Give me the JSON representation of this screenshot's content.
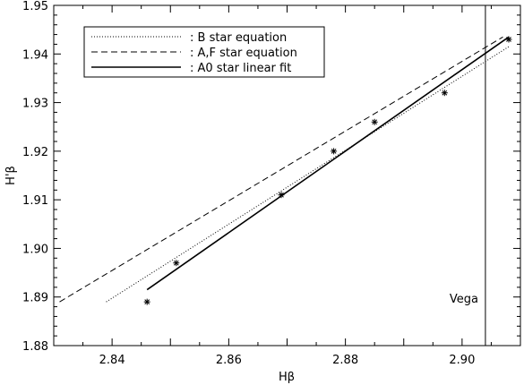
{
  "chart_data": {
    "type": "line",
    "xlabel": "Hβ",
    "ylabel": "H'β",
    "xlim": [
      2.83,
      2.91
    ],
    "ylim": [
      1.88,
      1.95
    ],
    "xticks": [
      "2.84",
      "2.86",
      "2.88",
      "2.90"
    ],
    "xtick_values": [
      2.84,
      2.86,
      2.88,
      2.9
    ],
    "yticks": [
      "1.88",
      "1.89",
      "1.90",
      "1.91",
      "1.92",
      "1.93",
      "1.94",
      "1.95"
    ],
    "ytick_values": [
      1.88,
      1.89,
      1.9,
      1.91,
      1.92,
      1.93,
      1.94,
      1.95
    ],
    "grid": false,
    "legend_position": "top-left",
    "series": [
      {
        "name": ": B star equation",
        "style": "dotted",
        "x": [
          2.839,
          2.908
        ],
        "y": [
          1.889,
          1.9415
        ]
      },
      {
        "name": ": A,F star equation",
        "style": "dashed",
        "x": [
          2.831,
          2.907
        ],
        "y": [
          1.889,
          1.9435
        ]
      },
      {
        "name": ": A0 star linear fit",
        "style": "solid",
        "x": [
          2.846,
          2.908
        ],
        "y": [
          1.8915,
          1.9435
        ]
      }
    ],
    "points": {
      "marker": "asterisk",
      "x": [
        2.846,
        2.851,
        2.869,
        2.878,
        2.885,
        2.897,
        2.908
      ],
      "y": [
        1.889,
        1.897,
        1.911,
        1.92,
        1.926,
        1.932,
        1.943
      ]
    },
    "vline": {
      "x": 2.904,
      "label": "Vega"
    }
  }
}
